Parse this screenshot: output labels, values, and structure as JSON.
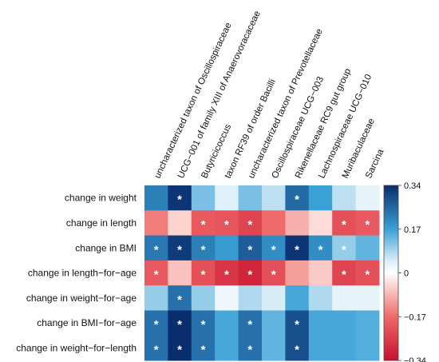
{
  "chart_data": {
    "type": "heatmap",
    "rows": [
      "change in weight",
      "change in length",
      "change in BMI",
      "change in length−for−age",
      "change in weight−for−age",
      "change in BMI−for−age",
      "change in weight−for−length"
    ],
    "columns": [
      "uncharacterized taxon of Oscillospiraceae",
      "UCG−001 of family XIII of Anaerovoracaceae",
      "Butyricicoccus",
      "taxon RF39 of order Bacilli",
      "uncharacterized taxon of Prevotellaceae",
      "Oscillospiraceae UCG−003",
      "Rikenellaceae RC9 gut group",
      "Lachnospiraceae UCG−010",
      "Muribaculaceae",
      "Sarcina"
    ],
    "values": [
      [
        0.22,
        0.33,
        0.12,
        0.04,
        0.12,
        0.07,
        0.25,
        0.17,
        0.07,
        0.03
      ],
      [
        -0.15,
        -0.05,
        -0.2,
        -0.21,
        -0.24,
        -0.17,
        -0.09,
        -0.04,
        -0.22,
        -0.2
      ],
      [
        0.23,
        0.32,
        0.22,
        0.18,
        0.27,
        0.2,
        0.33,
        0.2,
        0.1,
        0.14
      ],
      [
        -0.2,
        -0.07,
        -0.22,
        -0.27,
        -0.3,
        -0.22,
        -0.11,
        -0.06,
        -0.24,
        -0.22
      ],
      [
        0.1,
        0.24,
        0.1,
        0.02,
        0.08,
        0.05,
        0.16,
        0.08,
        0.03,
        0.03
      ],
      [
        0.24,
        0.34,
        0.24,
        0.16,
        0.24,
        0.14,
        0.29,
        0.16,
        0.16,
        0.15
      ],
      [
        0.24,
        0.34,
        0.24,
        0.16,
        0.24,
        0.14,
        0.29,
        0.16,
        0.16,
        0.15
      ]
    ],
    "significance": [
      [
        0,
        1,
        0,
        0,
        0,
        0,
        1,
        0,
        0,
        0
      ],
      [
        0,
        0,
        1,
        1,
        1,
        0,
        0,
        0,
        1,
        1
      ],
      [
        1,
        1,
        1,
        0,
        1,
        1,
        1,
        1,
        1,
        0
      ],
      [
        1,
        0,
        1,
        1,
        1,
        1,
        0,
        0,
        1,
        1
      ],
      [
        0,
        1,
        0,
        0,
        0,
        0,
        0,
        0,
        0,
        0
      ],
      [
        1,
        1,
        1,
        0,
        1,
        0,
        1,
        0,
        0,
        0
      ],
      [
        1,
        1,
        1,
        0,
        1,
        0,
        1,
        0,
        0,
        0
      ]
    ],
    "marker": "*",
    "colorbar": {
      "min": -0.34,
      "max": 0.34,
      "ticks": [
        "0.34",
        "0.17",
        "0",
        "−0.17",
        "−0.34"
      ],
      "tick_values": [
        0.34,
        0.17,
        0,
        -0.17,
        -0.34
      ],
      "stops": [
        {
          "v": -0.34,
          "color": "#c8102e"
        },
        {
          "v": -0.17,
          "color": "#ef6a6a"
        },
        {
          "v": -0.05,
          "color": "#fbd3cf"
        },
        {
          "v": 0,
          "color": "#ffffff"
        },
        {
          "v": 0.05,
          "color": "#d6ecf7"
        },
        {
          "v": 0.17,
          "color": "#3aa1d6"
        },
        {
          "v": 0.34,
          "color": "#0a2d6e"
        }
      ]
    },
    "title": "",
    "xlabel": "",
    "ylabel": ""
  }
}
